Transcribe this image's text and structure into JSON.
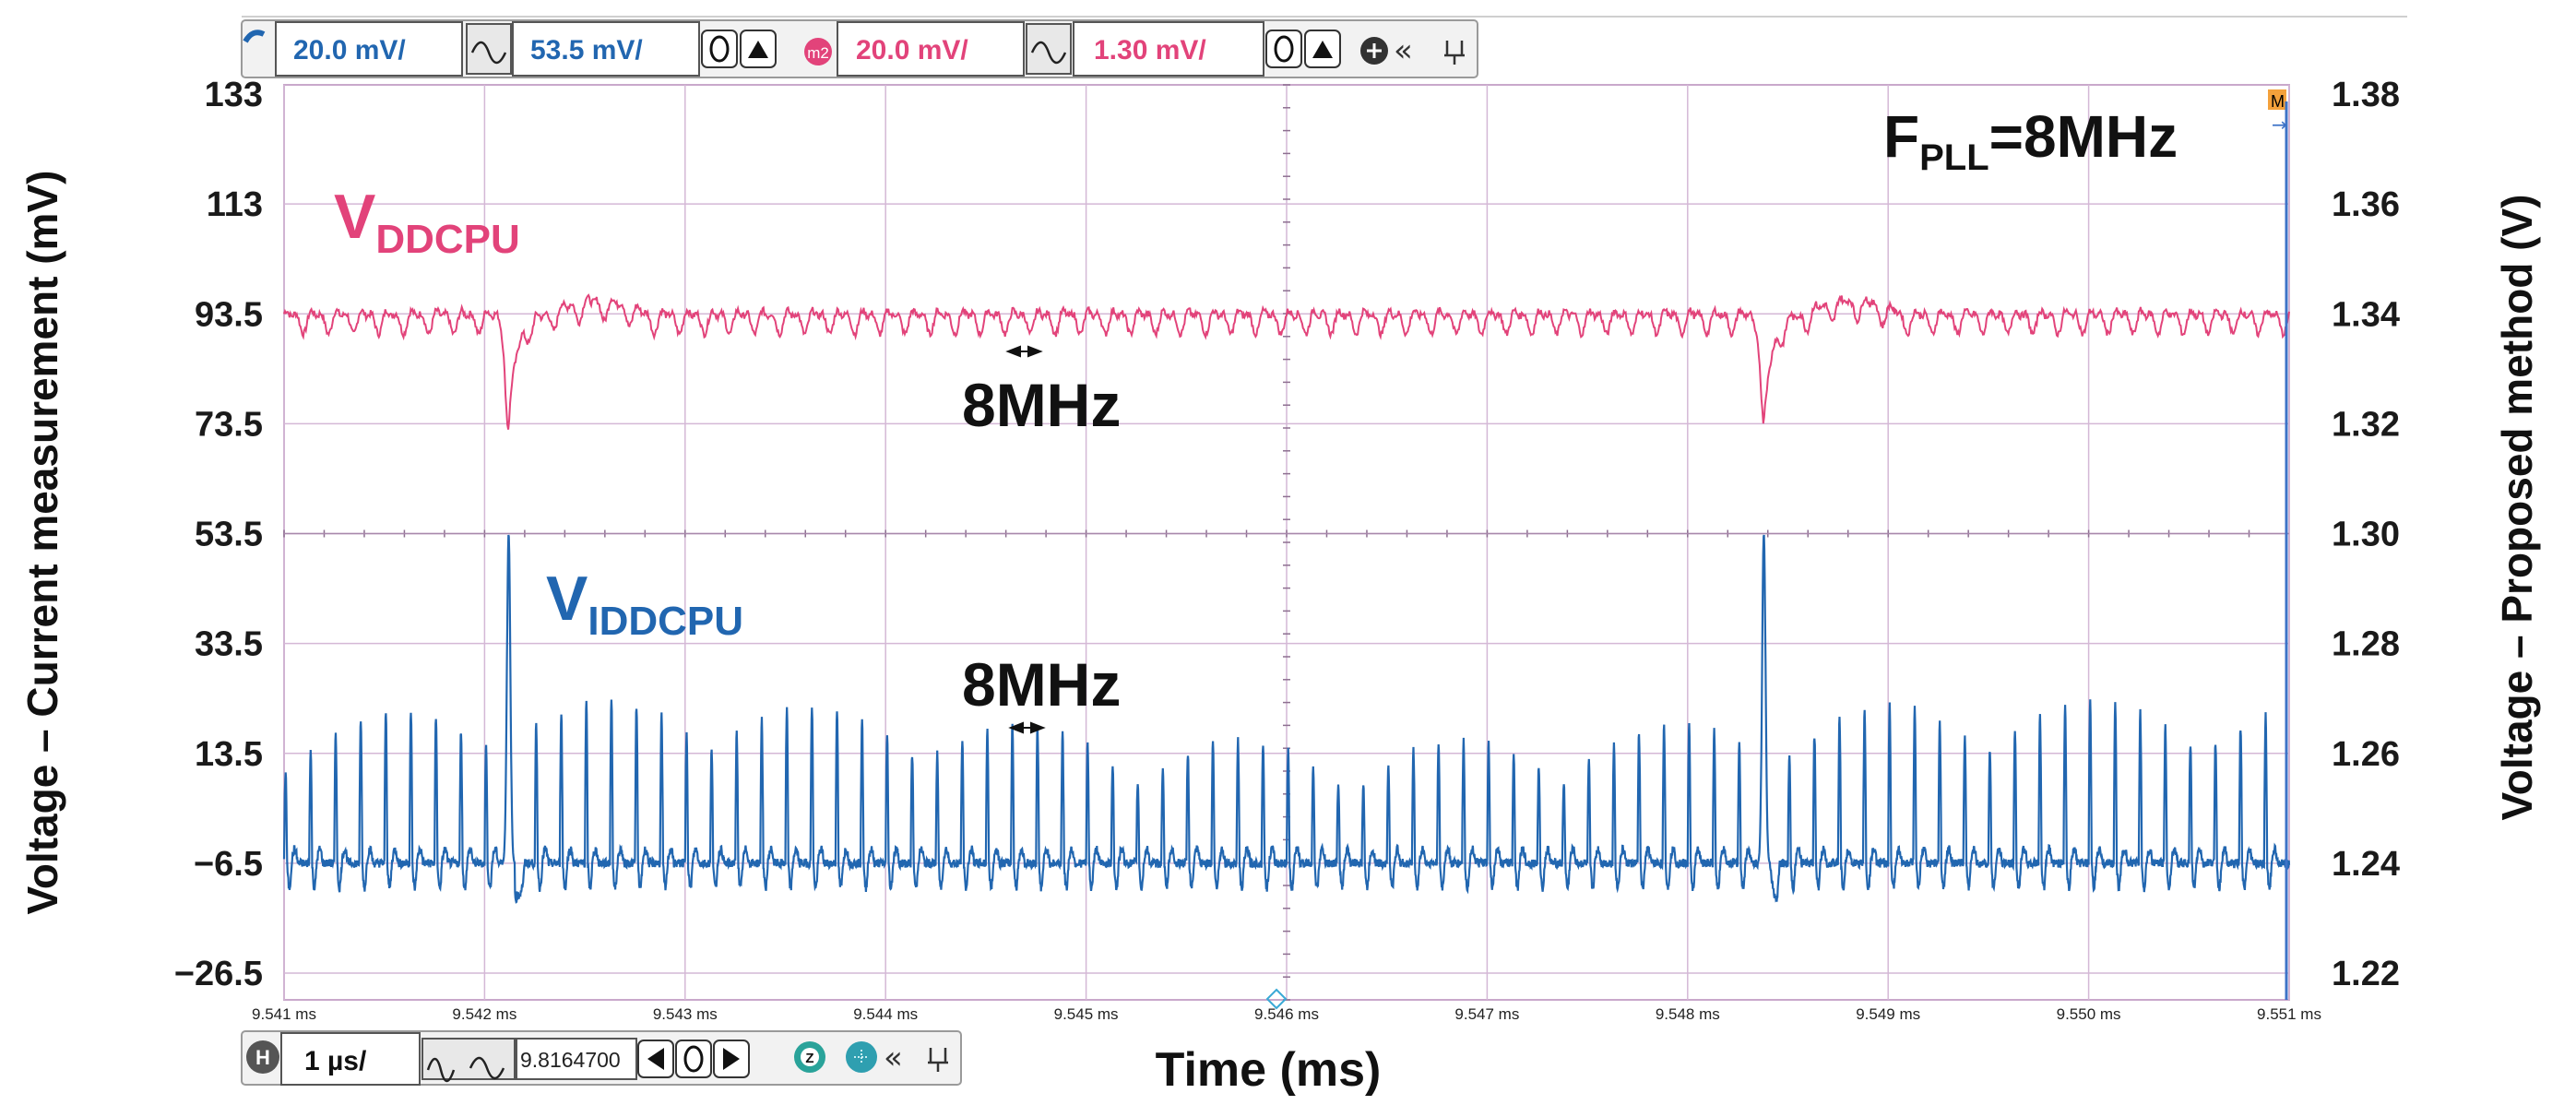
{
  "top_toolbar": {
    "ch1_scale": "20.0 mV/",
    "ch1_offset": "53.5 mV/",
    "math_badge": "m2",
    "ch2_scale": "20.0 mV/",
    "ch2_offset": "1.30 mV/"
  },
  "bottom_toolbar": {
    "h_badge": "H",
    "timebase": "1 µs/",
    "position": "9.8164700",
    "z_badge": "Z"
  },
  "colors": {
    "vdd": "#e2437a",
    "idd": "#2166b0",
    "grid": "#d4b8d6",
    "accent_orange": "#f4a13b"
  },
  "annotations": {
    "fpll": "F",
    "fpll_sub": "PLL",
    "fpll_value": "=8MHz",
    "vdd_main": "V",
    "vdd_sub": "DDCPU",
    "idd_main": "V",
    "idd_sub": "IDDCPU",
    "freq_top": "8MHz",
    "freq_bottom": "8MHz",
    "marker_label": "M"
  },
  "chart_data": {
    "type": "line",
    "xlabel": "Time (ms)",
    "ylabel_left": "Voltage – Current measurement (mV)",
    "ylabel_right": "Voltage – Proposed method (V)",
    "x_ticks": [
      "9.541 ms",
      "9.542 ms",
      "9.543 ms",
      "9.544 ms",
      "9.545 ms",
      "9.546 ms",
      "9.547 ms",
      "9.548 ms",
      "9.549 ms",
      "9.550 ms",
      "9.551 ms"
    ],
    "xlim": [
      9.541,
      9.551
    ],
    "left_ticks": [
      "133",
      "113",
      "93.5",
      "73.5",
      "53.5",
      "33.5",
      "13.5",
      "−6.5",
      "−26.5"
    ],
    "right_ticks": [
      "1.38",
      "1.36",
      "1.34",
      "1.32",
      "1.30",
      "1.28",
      "1.26",
      "1.24",
      "1.22"
    ],
    "ylim_right": [
      1.22,
      1.38
    ],
    "series": [
      {
        "name": "VDDCPU",
        "axis": "right",
        "baseline": 1.339,
        "ripple_amplitude": 0.003,
        "ripple_frequency_mhz": 8,
        "dips": [
          {
            "x": 9.54212,
            "min": 1.319
          },
          {
            "x": 9.54838,
            "min": 1.319
          }
        ]
      },
      {
        "name": "VIDDCPU",
        "axis": "left",
        "baseline_mv": -6.5,
        "pulse_frequency_mhz": 8,
        "typical_peak_mv": 18,
        "max_peak_mv": 53.5,
        "spike_times_ms": [
          9.54212,
          9.54838
        ]
      }
    ]
  }
}
